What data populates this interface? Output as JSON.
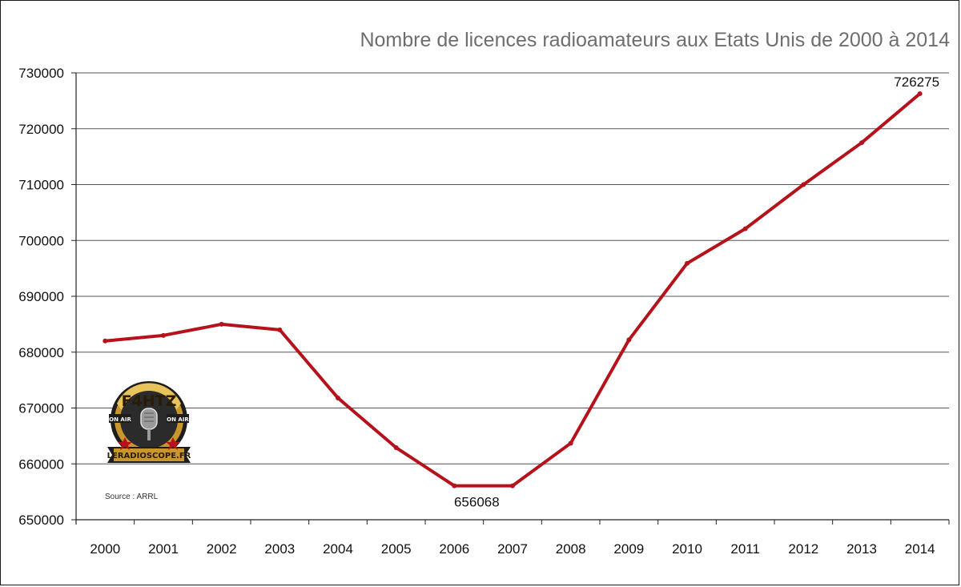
{
  "chart_data": {
    "type": "line",
    "title": "Nombre de licences radioamateurs aux Etats Unis de 2000 à 2014",
    "xlabel": "",
    "ylabel": "",
    "categories": [
      "2000",
      "2001",
      "2002",
      "2003",
      "2004",
      "2005",
      "2006",
      "2007",
      "2008",
      "2009",
      "2010",
      "2011",
      "2012",
      "2013",
      "2014"
    ],
    "series": [
      {
        "values": [
          682000,
          683000,
          685000,
          684000,
          671800,
          662900,
          656068,
          656068,
          663700,
          682200,
          695900,
          702100,
          710000,
          717500,
          726275
        ]
      }
    ],
    "data_labels": [
      {
        "index": 6,
        "text": "656068"
      },
      {
        "index": 14,
        "text": "726275"
      }
    ],
    "yticks": [
      "650000",
      "660000",
      "670000",
      "680000",
      "690000",
      "700000",
      "710000",
      "720000",
      "730000"
    ],
    "ylim": [
      650000,
      730000
    ],
    "grid": true,
    "line_color": "#b5121b",
    "source": "Source : ARRL",
    "logo": {
      "callsign": "F4HTZ",
      "left_band": "ON AIR",
      "right_band": "ON AIR",
      "site": "LERADIOSCOPE.FR"
    }
  }
}
